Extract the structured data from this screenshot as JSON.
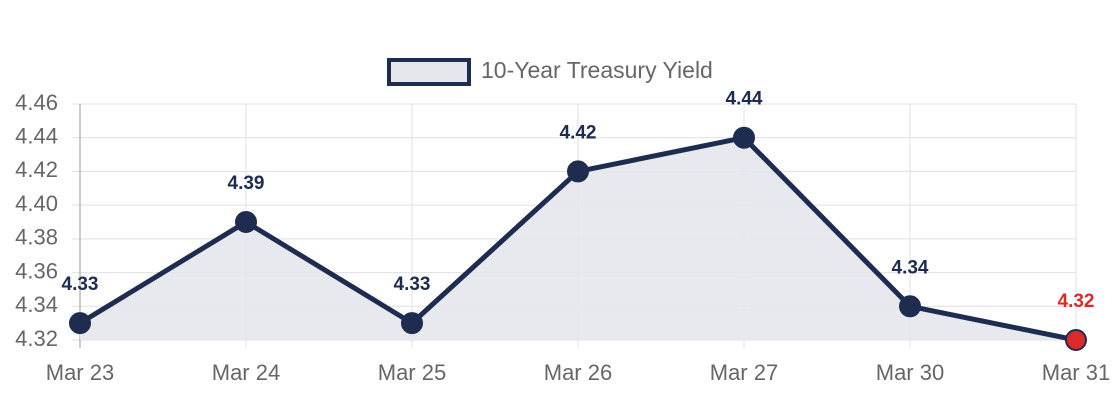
{
  "chart_data": {
    "type": "line",
    "categories": [
      "Mar 23",
      "Mar 24",
      "Mar 25",
      "Mar 26",
      "Mar 27",
      "Mar 30",
      "Mar 31"
    ],
    "series": [
      {
        "name": "10-Year Treasury Yield",
        "color": "#1e2d4f",
        "fill": "#e6e7ec",
        "values": [
          4.33,
          4.39,
          4.33,
          4.42,
          4.44,
          4.34,
          4.32
        ],
        "point_colors": [
          "#1e2d4f",
          "#1e2d4f",
          "#1e2d4f",
          "#1e2d4f",
          "#1e2d4f",
          "#1e2d4f",
          "#dc2a2a"
        ]
      }
    ],
    "ylim": [
      4.32,
      4.46
    ],
    "yticks": [
      4.32,
      4.34,
      4.36,
      4.38,
      {
        "value": 4.4,
        "label": "4.40"
      },
      4.42,
      4.44,
      4.46
    ],
    "grid": true,
    "legend": "top"
  }
}
